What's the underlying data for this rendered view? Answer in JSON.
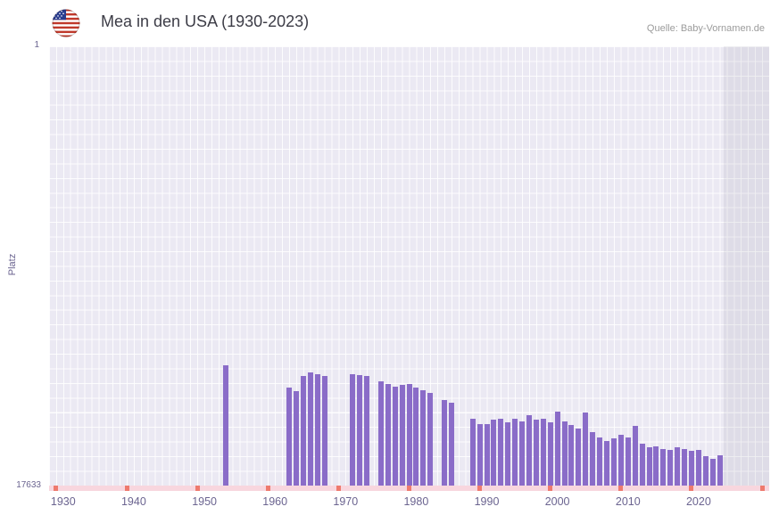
{
  "header": {
    "title": "Mea in den USA (1930-2023)",
    "source": "Quelle: Baby-Vornamen.de",
    "flag_icon": "us-flag-icon"
  },
  "chart_data": {
    "type": "bar",
    "title": "Mea in den USA (1930-2023)",
    "ylabel": "Platz",
    "xlabel": "",
    "legend": "none",
    "grid": true,
    "y_axis": {
      "min": 1,
      "max": 17633,
      "inverted": true,
      "top_label": "1",
      "bottom_label": "17633"
    },
    "x_axis": {
      "range": [
        1928,
        2030
      ],
      "ticks": [
        1930,
        1940,
        1950,
        1960,
        1970,
        1980,
        1990,
        2000,
        2010,
        2020
      ]
    },
    "colors": {
      "bar": "#8a6cc8",
      "plot_bg": "#ebe9f3",
      "grid_line": "#ffffff",
      "no_data_strip": "#f8d6de",
      "no_data_marker": "#ee7a6e",
      "future_band": "rgba(110,110,130,0.10)",
      "axis_text": "#6b6490",
      "title_text": "#3c3c46",
      "source_text": "#9b9b9b"
    },
    "future_band_from": 2023.6,
    "no_data_marker_years": [
      1929,
      1939,
      1949,
      1959,
      1969,
      1979,
      1989,
      1999,
      2009,
      2019,
      2029
    ],
    "series": [
      {
        "year": 1953,
        "rank": 12800
      },
      {
        "year": 1962,
        "rank": 13700
      },
      {
        "year": 1963,
        "rank": 13850
      },
      {
        "year": 1964,
        "rank": 13250
      },
      {
        "year": 1965,
        "rank": 13100
      },
      {
        "year": 1966,
        "rank": 13150
      },
      {
        "year": 1967,
        "rank": 13250
      },
      {
        "year": 1971,
        "rank": 13150
      },
      {
        "year": 1972,
        "rank": 13200
      },
      {
        "year": 1973,
        "rank": 13250
      },
      {
        "year": 1975,
        "rank": 13450
      },
      {
        "year": 1976,
        "rank": 13550
      },
      {
        "year": 1977,
        "rank": 13650
      },
      {
        "year": 1978,
        "rank": 13600
      },
      {
        "year": 1979,
        "rank": 13550
      },
      {
        "year": 1980,
        "rank": 13700
      },
      {
        "year": 1981,
        "rank": 13800
      },
      {
        "year": 1982,
        "rank": 13900
      },
      {
        "year": 1984,
        "rank": 14200
      },
      {
        "year": 1985,
        "rank": 14300
      },
      {
        "year": 1988,
        "rank": 14950
      },
      {
        "year": 1989,
        "rank": 15150
      },
      {
        "year": 1990,
        "rank": 15150
      },
      {
        "year": 1991,
        "rank": 15000
      },
      {
        "year": 1992,
        "rank": 14950
      },
      {
        "year": 1993,
        "rank": 15100
      },
      {
        "year": 1994,
        "rank": 14950
      },
      {
        "year": 1995,
        "rank": 15050
      },
      {
        "year": 1996,
        "rank": 14800
      },
      {
        "year": 1997,
        "rank": 15000
      },
      {
        "year": 1998,
        "rank": 14950
      },
      {
        "year": 1999,
        "rank": 15100
      },
      {
        "year": 2000,
        "rank": 14650
      },
      {
        "year": 2001,
        "rank": 15050
      },
      {
        "year": 2002,
        "rank": 15200
      },
      {
        "year": 2003,
        "rank": 15350
      },
      {
        "year": 2004,
        "rank": 14700
      },
      {
        "year": 2005,
        "rank": 15500
      },
      {
        "year": 2006,
        "rank": 15700
      },
      {
        "year": 2007,
        "rank": 15850
      },
      {
        "year": 2008,
        "rank": 15750
      },
      {
        "year": 2009,
        "rank": 15600
      },
      {
        "year": 2010,
        "rank": 15700
      },
      {
        "year": 2011,
        "rank": 15250
      },
      {
        "year": 2012,
        "rank": 15950
      },
      {
        "year": 2013,
        "rank": 16100
      },
      {
        "year": 2014,
        "rank": 16050
      },
      {
        "year": 2015,
        "rank": 16150
      },
      {
        "year": 2016,
        "rank": 16200
      },
      {
        "year": 2017,
        "rank": 16100
      },
      {
        "year": 2018,
        "rank": 16150
      },
      {
        "year": 2019,
        "rank": 16250
      },
      {
        "year": 2020,
        "rank": 16200
      },
      {
        "year": 2021,
        "rank": 16450
      },
      {
        "year": 2022,
        "rank": 16550
      },
      {
        "year": 2023,
        "rank": 16400
      }
    ]
  }
}
